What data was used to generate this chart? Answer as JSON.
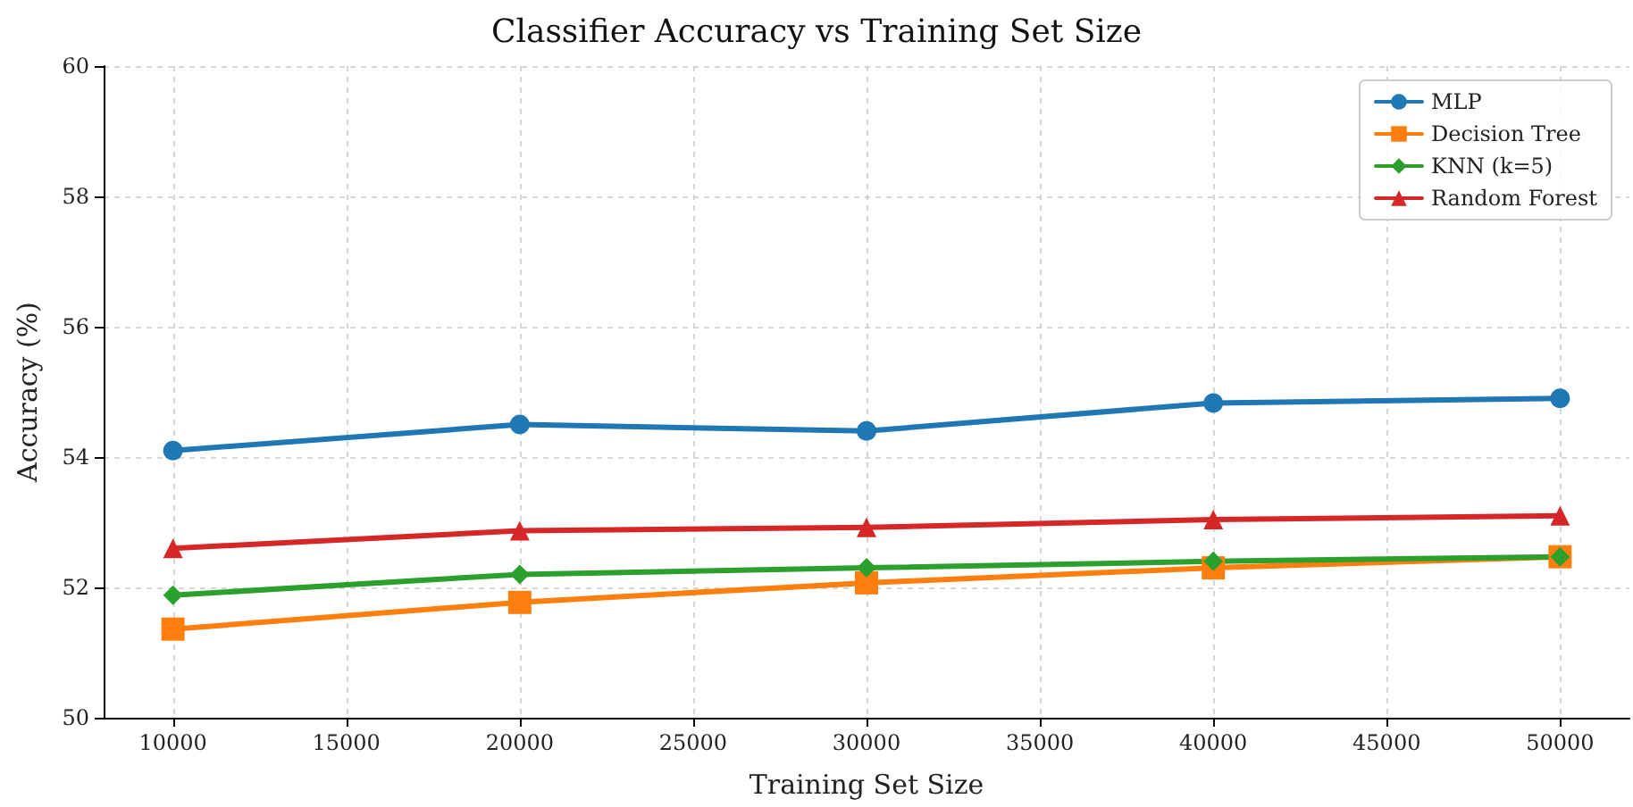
{
  "chart_data": {
    "type": "line",
    "title": "Classifier Accuracy vs Training Set Size",
    "xlabel": "Training Set Size",
    "ylabel": "Accuracy (%)",
    "x": [
      10000,
      20000,
      30000,
      40000,
      50000
    ],
    "series": [
      {
        "name": "MLP",
        "color": "#1f77b4",
        "marker": "circle",
        "values": [
          54.1,
          54.5,
          54.4,
          54.83,
          54.9
        ]
      },
      {
        "name": "Decision Tree",
        "color": "#ff7f0e",
        "marker": "square",
        "values": [
          51.36,
          51.77,
          52.07,
          52.3,
          52.47
        ]
      },
      {
        "name": "KNN (k=5)",
        "color": "#2ca02c",
        "marker": "diamond",
        "values": [
          51.88,
          52.2,
          52.3,
          52.4,
          52.47
        ]
      },
      {
        "name": "Random Forest",
        "color": "#d62728",
        "marker": "triangle",
        "values": [
          52.6,
          52.87,
          52.92,
          53.04,
          53.1
        ]
      }
    ],
    "xlim": [
      8000,
      52000
    ],
    "xticks": [
      10000,
      15000,
      20000,
      25000,
      30000,
      35000,
      40000,
      45000,
      50000
    ],
    "ylim": [
      50,
      60
    ],
    "yticks": [
      50,
      52,
      54,
      56,
      58,
      60
    ],
    "grid": true,
    "legend": "top right",
    "line_style": "solid"
  }
}
